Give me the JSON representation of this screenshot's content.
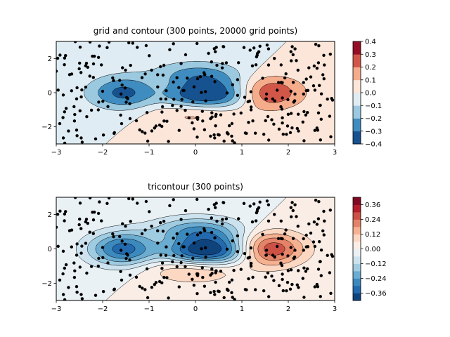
{
  "chart_data": [
    {
      "type": "contour",
      "title": "grid and contour (300 points, 20000 grid points)",
      "xlim": [
        -3,
        3
      ],
      "ylim": [
        -3,
        3
      ],
      "xticks": [
        -3,
        -2,
        -1,
        0,
        1,
        2,
        3
      ],
      "yticks": [
        -2,
        0,
        2
      ],
      "xtick_labels": [
        "−3",
        "−2",
        "−1",
        "0",
        "1",
        "2",
        "3"
      ],
      "ytick_labels": [
        "−2",
        "0",
        "2"
      ],
      "colormap": "RdBu_r",
      "levels": [
        -0.4,
        -0.3,
        -0.2,
        -0.1,
        0.0,
        0.1,
        0.2,
        0.3,
        0.4
      ],
      "colorbar_ticks": [
        0.4,
        0.3,
        0.2,
        0.1,
        0.0,
        -0.1,
        -0.2,
        -0.3,
        -0.4
      ],
      "colorbar_tick_labels": [
        "0.4",
        "0.3",
        "0.2",
        "0.1",
        "0.0",
        "−0.1",
        "−0.2",
        "−0.3",
        "−0.4"
      ],
      "colorbar_range": [
        -0.4,
        0.4
      ],
      "n_points": 300,
      "grid_points": 20000
    },
    {
      "type": "tricontour",
      "title": "tricontour (300 points)",
      "xlim": [
        -3,
        3
      ],
      "ylim": [
        -3,
        3
      ],
      "xticks": [
        -3,
        -2,
        -1,
        0,
        1,
        2,
        3
      ],
      "yticks": [
        -2,
        0,
        2
      ],
      "xtick_labels": [
        "−3",
        "−2",
        "−1",
        "0",
        "1",
        "2",
        "3"
      ],
      "ytick_labels": [
        "−2",
        "0",
        "2"
      ],
      "colormap": "RdBu_r",
      "levels": [
        -0.42,
        -0.36,
        -0.3,
        -0.24,
        -0.18,
        -0.12,
        -0.06,
        0.0,
        0.06,
        0.12,
        0.18,
        0.24,
        0.3,
        0.36,
        0.42
      ],
      "colorbar_ticks": [
        0.36,
        0.24,
        0.12,
        0.0,
        -0.12,
        -0.24,
        -0.36
      ],
      "colorbar_tick_labels": [
        "0.36",
        "0.24",
        "0.12",
        "0.00",
        "−0.12",
        "−0.24",
        "−0.36"
      ],
      "colorbar_range": [
        -0.42,
        0.42
      ],
      "n_points": 300
    }
  ]
}
